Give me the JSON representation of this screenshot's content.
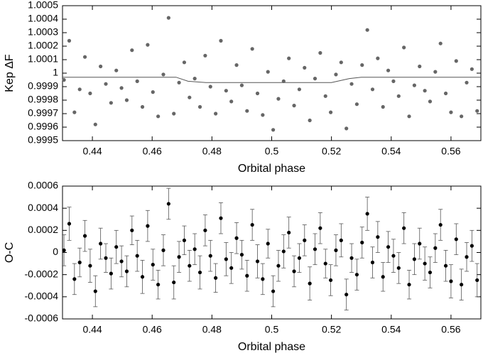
{
  "chart_data": [
    {
      "type": "scatter",
      "ylabel": "Kep ΔF",
      "xlabel": "Orbital phase",
      "xlim": [
        0.43,
        0.57
      ],
      "xticks": [
        0.44,
        0.46,
        0.48,
        0.5,
        0.52,
        0.54,
        0.56
      ],
      "ylim": [
        0.9995,
        1.0005
      ],
      "yticks": [
        0.9995,
        0.9996,
        0.9997,
        0.9998,
        0.9999,
        1,
        1.0001,
        1.0002,
        1.0003,
        1.0004,
        1.0005
      ],
      "color": "#666666",
      "x": [
        0.4305,
        0.43225,
        0.434,
        0.43575,
        0.4375,
        0.43925,
        0.441,
        0.44275,
        0.4445,
        0.44625,
        0.448,
        0.44975,
        0.4515,
        0.45325,
        0.455,
        0.45675,
        0.4585,
        0.46025,
        0.462,
        0.46375,
        0.4655,
        0.46725,
        0.469,
        0.47075,
        0.4725,
        0.47425,
        0.476,
        0.47775,
        0.4795,
        0.48125,
        0.483,
        0.48475,
        0.4865,
        0.48825,
        0.49,
        0.49175,
        0.4935,
        0.49525,
        0.497,
        0.49875,
        0.5005,
        0.50225,
        0.504,
        0.50575,
        0.5075,
        0.50925,
        0.511,
        0.51275,
        0.5145,
        0.51625,
        0.518,
        0.51975,
        0.5215,
        0.52325,
        0.525,
        0.52675,
        0.5285,
        0.53025,
        0.532,
        0.53375,
        0.5355,
        0.53725,
        0.539,
        0.54075,
        0.5425,
        0.54425,
        0.546,
        0.54775,
        0.5495,
        0.55125,
        0.553,
        0.55475,
        0.5565,
        0.55825,
        0.56,
        0.56175,
        0.5635,
        0.56525,
        0.567,
        0.56875
      ],
      "values": [
        0.99995,
        1.00024,
        0.99971,
        0.99988,
        1.00012,
        0.99985,
        0.99962,
        1.00005,
        0.99992,
        0.99978,
        1.00002,
        0.99989,
        0.9998,
        1.00017,
        0.99994,
        0.99975,
        1.00021,
        0.99986,
        0.99968,
        0.99999,
        1.00041,
        0.9997,
        0.99993,
        1.00008,
        0.99982,
        0.99996,
        0.99975,
        1.00013,
        0.9999,
        0.9997,
        1.00024,
        0.99987,
        0.99979,
        1.00006,
        0.99991,
        0.99972,
        1.00018,
        0.99985,
        0.99969,
        1.00001,
        0.99958,
        0.99981,
        0.99994,
        1.00011,
        0.99976,
        0.99988,
        1.00004,
        0.99965,
        0.99996,
        1.00015,
        0.99983,
        0.99971,
        0.99999,
        1.00008,
        0.99959,
        0.99992,
        0.99977,
        1.00006,
        1.00032,
        0.99988,
        1.00011,
        0.99975,
        1.00002,
        0.99994,
        0.99983,
        1.00019,
        0.99968,
        0.99991,
        1.00005,
        0.99987,
        0.99979,
        1.00001,
        1.00022,
        0.99985,
        0.99971,
        1.00009,
        0.99968,
        0.99993,
        1.00003,
        0.99972
      ],
      "line": {
        "color": "#555555",
        "x": [
          0.43,
          0.468,
          0.472,
          0.478,
          0.52,
          0.526,
          0.53,
          0.57
        ],
        "values": [
          0.99997,
          0.99997,
          0.99994,
          0.99993,
          0.99993,
          0.99996,
          0.99997,
          0.99997
        ]
      }
    },
    {
      "type": "errorbar",
      "ylabel": "O-C",
      "xlabel": "Orbital phase",
      "xlim": [
        0.43,
        0.57
      ],
      "xticks": [
        0.44,
        0.46,
        0.48,
        0.5,
        0.52,
        0.54,
        0.56
      ],
      "ylim": [
        -0.0006,
        0.0006
      ],
      "yticks": [
        -0.0006,
        -0.0004,
        -0.0002,
        0,
        0.0002,
        0.0004,
        0.0006
      ],
      "color": "#000000",
      "x": [
        0.4305,
        0.43225,
        0.434,
        0.43575,
        0.4375,
        0.43925,
        0.441,
        0.44275,
        0.4445,
        0.44625,
        0.448,
        0.44975,
        0.4515,
        0.45325,
        0.455,
        0.45675,
        0.4585,
        0.46025,
        0.462,
        0.46375,
        0.4655,
        0.46725,
        0.469,
        0.47075,
        0.4725,
        0.47425,
        0.476,
        0.47775,
        0.4795,
        0.48125,
        0.483,
        0.48475,
        0.4865,
        0.48825,
        0.49,
        0.49175,
        0.4935,
        0.49525,
        0.497,
        0.49875,
        0.5005,
        0.50225,
        0.504,
        0.50575,
        0.5075,
        0.50925,
        0.511,
        0.51275,
        0.5145,
        0.51625,
        0.518,
        0.51975,
        0.5215,
        0.52325,
        0.525,
        0.52675,
        0.5285,
        0.53025,
        0.532,
        0.53375,
        0.5355,
        0.53725,
        0.539,
        0.54075,
        0.5425,
        0.54425,
        0.546,
        0.54775,
        0.5495,
        0.55125,
        0.553,
        0.55475,
        0.5565,
        0.55825,
        0.56,
        0.56175,
        0.5635,
        0.56525,
        0.567,
        0.56875
      ],
      "values": [
        2e-05,
        0.00026,
        -0.00024,
        -9e-05,
        0.00015,
        -0.00012,
        -0.00035,
        8e-05,
        -5e-05,
        -0.00019,
        5e-05,
        -8e-05,
        -0.00017,
        0.0002,
        -3e-05,
        -0.00022,
        0.00024,
        -0.00011,
        -0.00029,
        2e-05,
        0.00044,
        -0.00027,
        -4e-05,
        0.00011,
        -0.00012,
        3e-05,
        -0.00018,
        0.0002,
        -3e-05,
        -0.00023,
        0.00031,
        -6e-05,
        -0.00014,
        0.00013,
        -2e-05,
        -0.00021,
        0.00025,
        -8e-05,
        -0.00024,
        8e-05,
        -0.00035,
        -0.00012,
        1e-05,
        0.00018,
        -0.00017,
        -5e-05,
        0.00011,
        -0.00028,
        3e-05,
        0.00022,
        -0.0001,
        -0.00025,
        2e-05,
        0.00011,
        -0.00038,
        -5e-05,
        -0.0002,
        9e-05,
        0.00035,
        -9e-05,
        0.00014,
        -0.00022,
        5e-05,
        -3e-05,
        -0.00014,
        0.00022,
        -0.00029,
        -6e-05,
        8e-05,
        -0.0001,
        -0.00018,
        4e-05,
        0.00025,
        -0.00012,
        -0.00026,
        0.00012,
        -0.00029,
        -4e-05,
        6e-05,
        -0.00025
      ],
      "errors": [
        0.00014,
        0.00015,
        0.00014,
        0.00013,
        0.00014,
        0.00015,
        0.00014,
        0.00014,
        0.00013,
        0.00014,
        0.00015,
        0.00014,
        0.00014,
        0.00013,
        0.00014,
        0.00015,
        0.00014,
        0.00014,
        0.00013,
        0.00014,
        0.00014,
        0.00015,
        0.00014,
        0.00013,
        0.00014,
        0.00014,
        0.00015,
        0.00014,
        0.00014,
        0.00013,
        0.00014,
        0.00015,
        0.00014,
        0.00014,
        0.00013,
        0.00014,
        0.00014,
        0.00015,
        0.00014,
        0.00013,
        0.00014,
        0.00014,
        0.00015,
        0.00014,
        0.00014,
        0.00013,
        0.00014,
        0.00015,
        0.00014,
        0.00014,
        0.00013,
        0.00014,
        0.00014,
        0.00015,
        0.00014,
        0.00013,
        0.00014,
        0.00014,
        0.00015,
        0.00014,
        0.00014,
        0.00013,
        0.00014,
        0.00015,
        0.00014,
        0.00014,
        0.00013,
        0.00014,
        0.00014,
        0.00015,
        0.00014,
        0.00013,
        0.00014,
        0.00014,
        0.00015,
        0.00014,
        0.00014,
        0.00013,
        0.00014,
        0.00015
      ]
    }
  ]
}
